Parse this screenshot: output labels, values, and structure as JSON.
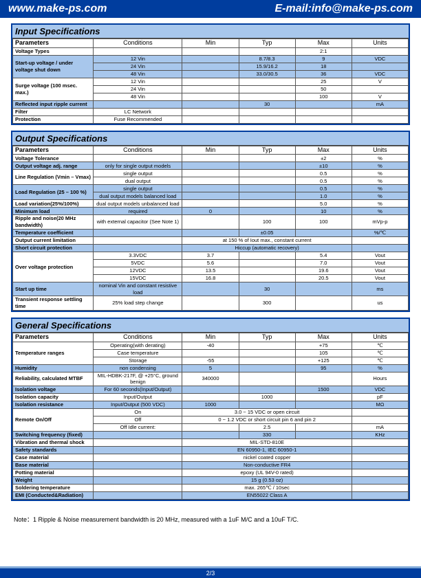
{
  "header": {
    "website": "www.make-ps.com",
    "email": "E-mail:info@make-ps.com"
  },
  "sections": {
    "input": {
      "title": "Input Specifications",
      "headers": [
        "Parameters",
        "Conditions",
        "Min",
        "Typ",
        "Max",
        "Units"
      ],
      "rows": [
        {
          "blue": false,
          "param": "Voltage Types",
          "cond": "",
          "min": "",
          "typ": "",
          "max": "2:1",
          "unit": ""
        },
        {
          "blue": true,
          "rowspan": 3,
          "param": "Start-up voltage / under voltage shut down",
          "cond": "12 Vin",
          "min": "",
          "typ": "8.7/8.3",
          "max": "9",
          "unit": "VDC"
        },
        {
          "blue": true,
          "cond": "24 Vin",
          "min": "",
          "typ": "15.9/16.2",
          "max": "18",
          "unit": ""
        },
        {
          "blue": true,
          "cond": "48 Vin",
          "min": "",
          "typ": "33.0/30.5",
          "max": "36",
          "unit": "VDC"
        },
        {
          "blue": false,
          "rowspan": 3,
          "param": "Surge voltage (100 msec. max.)",
          "cond": "12 Vin",
          "min": "",
          "typ": "",
          "max": "25",
          "unit": "V"
        },
        {
          "blue": false,
          "cond": "24 Vin",
          "min": "",
          "typ": "",
          "max": "50",
          "unit": ""
        },
        {
          "blue": false,
          "cond": "48 Vin",
          "min": "",
          "typ": "",
          "max": "100",
          "unit": "V"
        },
        {
          "blue": true,
          "param": "Reflected input ripple current",
          "cond": "",
          "min": "",
          "typ": "30",
          "max": "",
          "unit": "mA"
        },
        {
          "blue": false,
          "param": "Filter",
          "cond": "LC Network",
          "min": "",
          "typ": "",
          "max": "",
          "unit": ""
        },
        {
          "blue": false,
          "param": "Protection",
          "cond": "Fuse Recommended",
          "min": "",
          "typ": "",
          "max": "",
          "unit": ""
        }
      ]
    },
    "output": {
      "title": "Output Specifications",
      "headers": [
        "Parameters",
        "Conditions",
        "Min",
        "Typ",
        "Max",
        "Units"
      ],
      "rows": [
        {
          "blue": false,
          "param": "Voltage Tolerance",
          "cond": "",
          "min": "",
          "typ": "",
          "max": "±2",
          "unit": "%"
        },
        {
          "blue": true,
          "param": "Output voltage adj. range",
          "cond": "only for single output models",
          "min": "",
          "typ": "",
          "max": "±10",
          "unit": "%"
        },
        {
          "blue": false,
          "rowspan": 2,
          "param": "Line Regulation (Vmin – Vmax)",
          "cond": "single output",
          "min": "",
          "typ": "",
          "max": "0.5",
          "unit": "%"
        },
        {
          "blue": false,
          "cond": "dual output",
          "min": "",
          "typ": "",
          "max": "0.5",
          "unit": "%"
        },
        {
          "blue": true,
          "rowspan": 2,
          "param": "Load Regulation (25 – 100 %)",
          "cond": "single output",
          "min": "",
          "typ": "",
          "max": "0.5",
          "unit": "%"
        },
        {
          "blue": true,
          "cond": "dual output models balanced load",
          "min": "",
          "typ": "",
          "max": "1.0",
          "unit": "%"
        },
        {
          "blue": false,
          "param": "Load variation(25%/100%)",
          "cond": "dual output models unbalanced load",
          "min": "",
          "typ": "",
          "max": "5.0",
          "unit": "%"
        },
        {
          "blue": true,
          "param": "Minimum load",
          "cond": "required",
          "min": "0",
          "typ": "",
          "max": "10",
          "unit": "%"
        },
        {
          "blue": false,
          "param": "Ripple and noise(20 MHz bandwidth)",
          "cond": "with external capacitor (See Note 1)",
          "min": "",
          "typ": "100",
          "max": "100",
          "unit": "mVp-p"
        },
        {
          "blue": true,
          "param": "Temperature coefficient",
          "cond": "",
          "min": "",
          "typ": "±0.05",
          "max": "",
          "unit": "%/℃"
        },
        {
          "blue": false,
          "param": "Output current limitation",
          "cond": "",
          "span": "at 150 % of Iout max., constant current",
          "unit": ""
        },
        {
          "blue": true,
          "param": "Short circuit protection",
          "cond": "",
          "span": "Hiccup (automatic recovery)",
          "unit": ""
        },
        {
          "blue": false,
          "rowspan": 4,
          "param": "Over voltage protection",
          "cond": "3.3VDC",
          "min": "3.7",
          "typ": "",
          "max": "5.4",
          "unit": "Vout"
        },
        {
          "blue": false,
          "cond": "5VDC",
          "min": "5.6",
          "typ": "",
          "max": "7.0",
          "unit": "Vout"
        },
        {
          "blue": false,
          "cond": "12VDC",
          "min": "13.5",
          "typ": "",
          "max": "19.6",
          "unit": "Vout"
        },
        {
          "blue": false,
          "cond": "15VDC",
          "min": "16.8",
          "typ": "",
          "max": "20.5",
          "unit": "Vout"
        },
        {
          "blue": true,
          "param": "Start up time",
          "cond": "nominal Vin and constant resistive load",
          "min": "",
          "typ": "30",
          "max": "",
          "unit": "ms"
        },
        {
          "blue": false,
          "param": "Transient response settling time",
          "cond": "25% load step change",
          "min": "",
          "typ": "300",
          "max": "",
          "unit": "us"
        }
      ]
    },
    "general": {
      "title": "General  Specifications",
      "headers": [
        "Parameters",
        "Conditions",
        "Min",
        "Typ",
        "Max",
        "Units"
      ],
      "rows": [
        {
          "blue": false,
          "rowspan": 3,
          "param": "Temperature ranges",
          "cond": "Operating(with derating)",
          "min": "-40",
          "typ": "",
          "max": "+75",
          "unit": "℃"
        },
        {
          "blue": false,
          "cond": "Case temperature",
          "min": "",
          "typ": "",
          "max": "105",
          "unit": "℃"
        },
        {
          "blue": false,
          "cond": "Storage",
          "min": "-55",
          "typ": "",
          "max": "+125",
          "unit": "℃"
        },
        {
          "blue": true,
          "param": "Humidity",
          "cond": "non condensing",
          "min": "5",
          "typ": "",
          "max": "95",
          "unit": "%"
        },
        {
          "blue": false,
          "param": "Reliability, calculated MTBF",
          "cond": "MIL-HDBK-217F, @ +25°C, ground benign",
          "min": "340000",
          "typ": "",
          "max": "",
          "unit": "Hours"
        },
        {
          "blue": true,
          "param": "Isolation voltage",
          "cond": "For 60 seconds(Input/Output)",
          "min": "",
          "typ": "",
          "max": "1500",
          "unit": "VDC"
        },
        {
          "blue": false,
          "param": "Isolation capacity",
          "cond": "Input/Output",
          "min": "",
          "typ": "1000",
          "max": "",
          "unit": "pF"
        },
        {
          "blue": true,
          "param": "Isolation resistance",
          "cond": "Input/Output (500 VDC)",
          "min": "1000",
          "typ": "",
          "max": "",
          "unit": "MΩ"
        },
        {
          "blue": false,
          "rowspan": 3,
          "param": "Remote On/Off",
          "cond": "On",
          "span": "3.0 ~ 15 VDC or open circuit",
          "unit": ""
        },
        {
          "blue": false,
          "cond": "Off",
          "span": "0 ~ 1.2 VDC or short circuit pin 6 and pin 2",
          "unit": ""
        },
        {
          "blue": false,
          "cond": "Off Idle current:",
          "min": "",
          "typ": "2.5",
          "max": "",
          "unit": "mA"
        },
        {
          "blue": true,
          "param": "Switching frequency (fixed)",
          "cond": "",
          "min": "",
          "typ": "330",
          "max": "",
          "unit": "KHz"
        },
        {
          "blue": false,
          "param": "Vibration and thermal shock",
          "cond": "",
          "span": "MIL-STD-810E",
          "unit": ""
        },
        {
          "blue": true,
          "param": "Safety standards",
          "cond": "",
          "span": "EN 60950-1, IEC 60950-1",
          "unit": ""
        },
        {
          "blue": false,
          "param": "Case material",
          "cond": "",
          "span": "nickel coated copper",
          "unit": ""
        },
        {
          "blue": true,
          "param": "Base material",
          "cond": "",
          "span": "Non-conductive FR4",
          "unit": ""
        },
        {
          "blue": false,
          "param": "Potting material",
          "cond": "",
          "span": "epoxy (UL 94V-0 rated)",
          "unit": ""
        },
        {
          "blue": true,
          "param": "Weight",
          "cond": "",
          "span": "15 g (0.53 oz)",
          "unit": ""
        },
        {
          "blue": false,
          "param": "Soldering temperature",
          "cond": "",
          "span": "max. 265℃ / 10sec",
          "unit": ""
        },
        {
          "blue": true,
          "param": "EMI (Conducted&Radiation)",
          "cond": "",
          "span": "EN55022 Class A",
          "unit": ""
        }
      ]
    }
  },
  "note": "Note：1 Ripple & Noise measurement bandwidth is 20 MHz, measured with a 1uF M/C and a 10uF T/C.",
  "footer": "2/3"
}
